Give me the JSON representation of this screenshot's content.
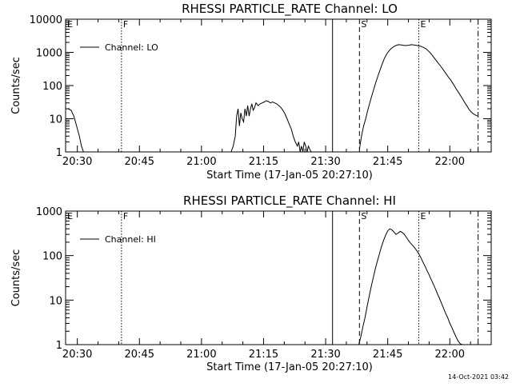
{
  "footer": {
    "timestamp": "14-Oct-2021 03:42"
  },
  "chart_data": [
    {
      "type": "line",
      "title": "RHESSI PARTICLE_RATE Channel: LO",
      "xlabel": "Start Time (17-Jan-05 20:27:10)",
      "ylabel": "Counts/sec",
      "xlim": [
        "20:27:10",
        "22:10:00"
      ],
      "ylim": [
        1,
        10000
      ],
      "yscale": "log",
      "grid": false,
      "legend_position": "top-left",
      "x_tick_labels": [
        "20:30",
        "20:45",
        "21:00",
        "21:15",
        "21:30",
        "21:45",
        "22:00"
      ],
      "y_tick_labels": [
        "1",
        "10",
        "100",
        "1000",
        "10000"
      ],
      "markers": [
        {
          "label": "E",
          "time": "20:27:10",
          "style": "none"
        },
        {
          "label": "F",
          "time": "20:40:40",
          "style": "dotted"
        },
        {
          "label": "",
          "time": "21:31:40",
          "style": "solid"
        },
        {
          "label": "S",
          "time": "21:38:10",
          "style": "dashed"
        },
        {
          "label": "E",
          "time": "21:52:30",
          "style": "dotted"
        },
        {
          "label": "",
          "time": "22:06:50",
          "style": "dashdot"
        }
      ],
      "series": [
        {
          "name": "Channel: LO",
          "segments": [
            {
              "x": [
                "20:27:10",
                "20:27:50",
                "20:28:30",
                "20:29:10",
                "20:29:50",
                "20:30:30",
                "20:31:00",
                "20:31:30"
              ],
              "y": [
                20,
                20,
                18,
                12,
                6,
                3,
                1.5,
                1
              ]
            },
            {
              "x": [
                "21:07:10",
                "21:07:40",
                "21:08:10",
                "21:08:30",
                "21:08:50",
                "21:09:10",
                "21:09:30",
                "21:09:50",
                "21:10:10",
                "21:10:30",
                "21:10:50",
                "21:11:10",
                "21:11:30",
                "21:11:50",
                "21:12:10",
                "21:12:30",
                "21:12:50",
                "21:13:10",
                "21:13:40",
                "21:14:10",
                "21:14:40",
                "21:15:10",
                "21:15:40",
                "21:16:10",
                "21:16:40",
                "21:17:10",
                "21:17:40",
                "21:18:10",
                "21:18:40",
                "21:19:10",
                "21:19:40",
                "21:20:10",
                "21:20:40",
                "21:21:10",
                "21:21:40",
                "21:22:10",
                "21:22:40",
                "21:23:10",
                "21:23:30",
                "21:23:50",
                "21:24:10",
                "21:24:30",
                "21:24:50",
                "21:25:10",
                "21:25:30",
                "21:25:50",
                "21:26:10",
                "21:26:30"
              ],
              "y": [
                1,
                1.5,
                3,
                12,
                20,
                6,
                15,
                10,
                8,
                20,
                12,
                25,
                12,
                20,
                28,
                18,
                22,
                30,
                25,
                28,
                30,
                32,
                35,
                33,
                30,
                32,
                30,
                28,
                25,
                22,
                18,
                14,
                10,
                7,
                5,
                3,
                2,
                1.5,
                2,
                1,
                1.5,
                1,
                2,
                1.5,
                1,
                1.5,
                1.2,
                1
              ]
            },
            {
              "x": [
                "21:38:10",
                "21:38:40",
                "21:39:10",
                "21:39:40",
                "21:40:10",
                "21:40:40",
                "21:41:10",
                "21:41:40",
                "21:42:10",
                "21:42:40",
                "21:43:10",
                "21:43:40",
                "21:44:10",
                "21:44:40",
                "21:45:10",
                "21:45:40",
                "21:46:10",
                "21:46:40",
                "21:47:10",
                "21:47:40",
                "21:48:10",
                "21:48:40",
                "21:49:10",
                "21:49:40",
                "21:50:10",
                "21:50:40",
                "21:51:10",
                "21:51:40",
                "21:52:10",
                "21:52:40",
                "21:53:10",
                "21:53:40",
                "21:54:10",
                "21:54:40",
                "21:55:10",
                "21:55:40",
                "21:56:10",
                "21:56:40",
                "21:57:10",
                "21:57:40",
                "21:58:10",
                "21:58:40",
                "21:59:10",
                "21:59:40",
                "22:00:10",
                "22:00:40",
                "22:01:10",
                "22:01:40",
                "22:02:10",
                "22:02:40",
                "22:03:10",
                "22:03:40",
                "22:04:10",
                "22:04:40",
                "22:05:10",
                "22:05:40",
                "22:06:10",
                "22:06:40"
              ],
              "y": [
                1.2,
                3,
                6,
                10,
                18,
                30,
                50,
                80,
                130,
                200,
                300,
                450,
                650,
                850,
                1050,
                1250,
                1400,
                1550,
                1650,
                1700,
                1680,
                1650,
                1600,
                1620,
                1650,
                1700,
                1680,
                1650,
                1600,
                1550,
                1500,
                1400,
                1300,
                1150,
                1000,
                850,
                700,
                580,
                480,
                400,
                330,
                270,
                220,
                180,
                150,
                120,
                95,
                75,
                60,
                48,
                38,
                30,
                24,
                19,
                16,
                14,
                13,
                12
              ]
            }
          ]
        }
      ]
    },
    {
      "type": "line",
      "title": "RHESSI PARTICLE_RATE Channel: HI",
      "xlabel": "Start Time (17-Jan-05 20:27:10)",
      "ylabel": "Counts/sec",
      "xlim": [
        "20:27:10",
        "22:10:00"
      ],
      "ylim": [
        1,
        1000
      ],
      "yscale": "log",
      "grid": false,
      "legend_position": "top-left",
      "x_tick_labels": [
        "20:30",
        "20:45",
        "21:00",
        "21:15",
        "21:30",
        "21:45",
        "22:00"
      ],
      "y_tick_labels": [
        "1",
        "10",
        "100",
        "1000"
      ],
      "markers": [
        {
          "label": "E",
          "time": "20:27:10",
          "style": "none"
        },
        {
          "label": "F",
          "time": "20:40:40",
          "style": "dotted"
        },
        {
          "label": "",
          "time": "21:31:40",
          "style": "solid"
        },
        {
          "label": "S",
          "time": "21:38:10",
          "style": "dashed"
        },
        {
          "label": "E",
          "time": "21:52:30",
          "style": "dotted"
        },
        {
          "label": "",
          "time": "22:06:50",
          "style": "dashdot"
        }
      ],
      "series": [
        {
          "name": "Channel: HI",
          "segments": [
            {
              "x": [
                "21:38:00",
                "21:38:30",
                "21:39:00",
                "21:39:30",
                "21:40:00",
                "21:40:30",
                "21:41:00",
                "21:41:30",
                "21:42:00",
                "21:42:30",
                "21:43:00",
                "21:43:30",
                "21:44:00",
                "21:44:30",
                "21:45:00",
                "21:45:30",
                "21:46:00",
                "21:46:30",
                "21:47:00",
                "21:47:30",
                "21:48:00",
                "21:48:30",
                "21:49:00",
                "21:49:30",
                "21:50:00",
                "21:50:30",
                "21:51:00",
                "21:51:30",
                "21:52:00",
                "21:52:30",
                "21:53:00",
                "21:53:30",
                "21:54:00",
                "21:54:30",
                "21:55:00",
                "21:55:30",
                "21:56:00",
                "21:56:30",
                "21:57:00",
                "21:57:30",
                "21:58:00",
                "21:58:30",
                "21:59:00",
                "21:59:30",
                "22:00:00",
                "22:00:30",
                "22:01:00",
                "22:01:30",
                "22:02:00",
                "22:02:30",
                "22:03:00"
              ],
              "y": [
                1,
                1.5,
                2.5,
                4,
                7,
                12,
                20,
                32,
                50,
                75,
                110,
                160,
                220,
                290,
                360,
                400,
                380,
                340,
                300,
                320,
                350,
                330,
                300,
                260,
                220,
                190,
                170,
                150,
                130,
                110,
                90,
                72,
                58,
                46,
                37,
                29,
                23,
                18,
                14,
                11,
                8.5,
                6.5,
                5,
                4,
                3,
                2.4,
                1.9,
                1.5,
                1.2,
                1.05,
                1
              ]
            }
          ]
        }
      ]
    }
  ]
}
